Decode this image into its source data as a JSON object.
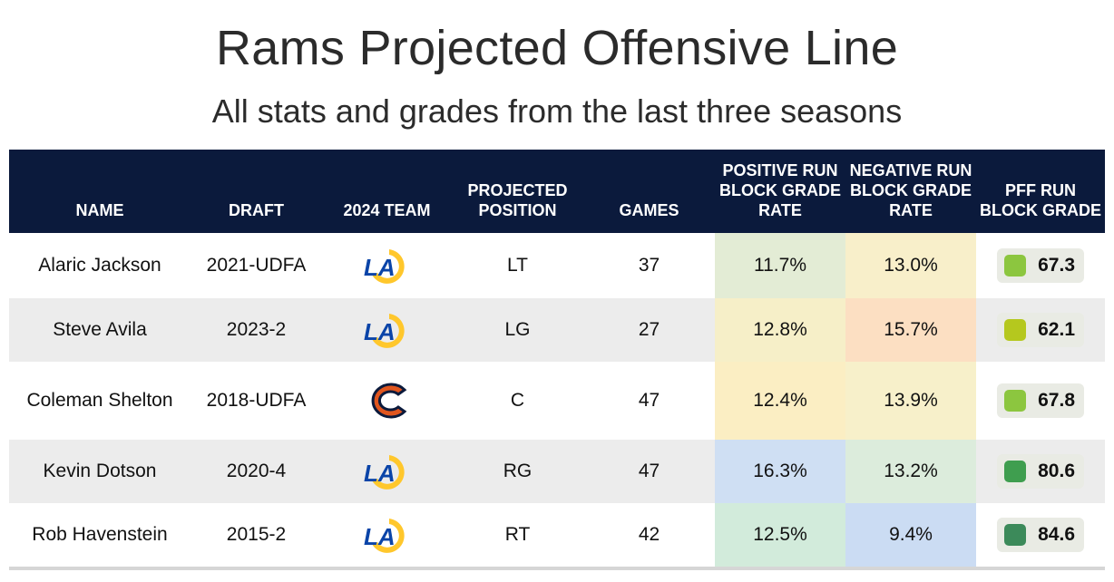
{
  "title": "Rams Projected Offensive Line",
  "subtitle": "All stats and grades from the last three seasons",
  "chart_data": {
    "type": "table",
    "columns": [
      "NAME",
      "DRAFT",
      "2024 TEAM",
      "PROJECTED POSITION",
      "GAMES",
      "POSITIVE RUN BLOCK GRADE RATE",
      "NEGATIVE RUN BLOCK GRADE RATE",
      "PFF RUN BLOCK GRADE"
    ],
    "rows": [
      {
        "name": "Alaric Jackson",
        "draft": "2021-UDFA",
        "team": "Rams",
        "team_icon": "rams-logo-icon",
        "position": "LT",
        "games": "37",
        "pos_rate": "11.7%",
        "neg_rate": "13.0%",
        "grade": "67.3",
        "pos_color": "#e3ecd5",
        "neg_color": "#f8efca",
        "grade_color": "#8cc63f"
      },
      {
        "name": "Steve Avila",
        "draft": "2023-2",
        "team": "Rams",
        "team_icon": "rams-logo-icon",
        "position": "LG",
        "games": "27",
        "pos_rate": "12.8%",
        "neg_rate": "15.7%",
        "grade": "62.1",
        "pos_color": "#f6efc8",
        "neg_color": "#fcdfc2",
        "grade_color": "#b5c81e"
      },
      {
        "name": "Coleman Shelton",
        "draft": "2018-UDFA",
        "team": "Bears",
        "team_icon": "bears-logo-icon",
        "position": "C",
        "games": "47",
        "pos_rate": "12.4%",
        "neg_rate": "13.9%",
        "grade": "67.8",
        "pos_color": "#fbeec3",
        "neg_color": "#f7f0ca",
        "grade_color": "#8cc63f"
      },
      {
        "name": "Kevin Dotson",
        "draft": "2020-4",
        "team": "Rams",
        "team_icon": "rams-logo-icon",
        "position": "RG",
        "games": "47",
        "pos_rate": "16.3%",
        "neg_rate": "13.2%",
        "grade": "80.6",
        "pos_color": "#cfdff3",
        "neg_color": "#dcecdc",
        "grade_color": "#3f9e4f"
      },
      {
        "name": "Rob Havenstein",
        "draft": "2015-2",
        "team": "Rams",
        "team_icon": "rams-logo-icon",
        "position": "RT",
        "games": "42",
        "pos_rate": "12.5%",
        "neg_rate": "9.4%",
        "grade": "84.6",
        "pos_color": "#d2ebdb",
        "neg_color": "#cbdcf3",
        "grade_color": "#3c8a5a"
      }
    ]
  }
}
